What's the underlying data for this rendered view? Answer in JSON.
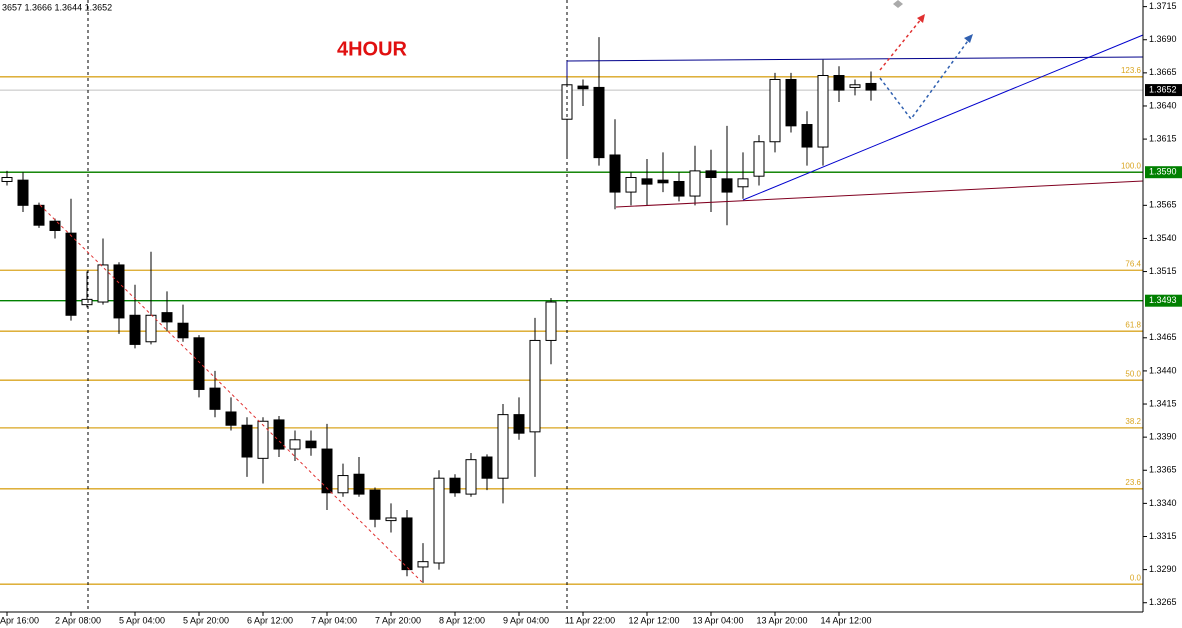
{
  "chart_data": {
    "type": "candlestick",
    "title": "4HOUR",
    "ohlc_header": "3657 1.3666 1.3644 1.3652",
    "categories": [
      "Apr 16:00",
      null,
      null,
      null,
      "2 Apr 08:00",
      null,
      null,
      null,
      "5 Apr 04:00",
      null,
      null,
      null,
      "5 Apr 20:00",
      null,
      null,
      null,
      "6 Apr 12:00",
      null,
      null,
      null,
      "7 Apr 04:00",
      null,
      null,
      null,
      "7 Apr 20:00",
      null,
      null,
      null,
      "8 Apr 12:00",
      null,
      null,
      null,
      "9 Apr 04:00",
      null,
      null,
      null,
      "11 Apr 22:00",
      null,
      null,
      null,
      "12 Apr 12:00",
      null,
      null,
      null,
      "13 Apr 04:00",
      null,
      null,
      null,
      "13 Apr 20:00",
      null,
      null,
      null,
      "14 Apr 12:00",
      null,
      null
    ],
    "candles": [
      {
        "open": 1.3583,
        "high": 1.3591,
        "low": 1.358,
        "close": 1.3586
      },
      {
        "open": 1.3584,
        "high": 1.359,
        "low": 1.356,
        "close": 1.3565
      },
      {
        "open": 1.3565,
        "high": 1.3567,
        "low": 1.3548,
        "close": 1.355
      },
      {
        "open": 1.3553,
        "high": 1.3555,
        "low": 1.354,
        "close": 1.3546
      },
      {
        "open": 1.3544,
        "high": 1.357,
        "low": 1.3478,
        "close": 1.3482
      },
      {
        "open": 1.349,
        "high": 1.3515,
        "low": 1.3488,
        "close": 1.3494
      },
      {
        "open": 1.3492,
        "high": 1.354,
        "low": 1.349,
        "close": 1.352
      },
      {
        "open": 1.352,
        "high": 1.3522,
        "low": 1.3468,
        "close": 1.348
      },
      {
        "open": 1.3482,
        "high": 1.3505,
        "low": 1.3457,
        "close": 1.346
      },
      {
        "open": 1.3462,
        "high": 1.353,
        "low": 1.346,
        "close": 1.3482
      },
      {
        "open": 1.3484,
        "high": 1.35,
        "low": 1.347,
        "close": 1.3477
      },
      {
        "open": 1.3476,
        "high": 1.349,
        "low": 1.3462,
        "close": 1.3465
      },
      {
        "open": 1.3465,
        "high": 1.3467,
        "low": 1.342,
        "close": 1.3426
      },
      {
        "open": 1.3427,
        "high": 1.344,
        "low": 1.3405,
        "close": 1.3411
      },
      {
        "open": 1.3409,
        "high": 1.342,
        "low": 1.3395,
        "close": 1.3399
      },
      {
        "open": 1.3399,
        "high": 1.3405,
        "low": 1.336,
        "close": 1.3375
      },
      {
        "open": 1.3374,
        "high": 1.3405,
        "low": 1.3355,
        "close": 1.3402
      },
      {
        "open": 1.3403,
        "high": 1.3406,
        "low": 1.3375,
        "close": 1.3381
      },
      {
        "open": 1.3381,
        "high": 1.3395,
        "low": 1.3372,
        "close": 1.3388
      },
      {
        "open": 1.3387,
        "high": 1.3395,
        "low": 1.3376,
        "close": 1.3382
      },
      {
        "open": 1.3381,
        "high": 1.34,
        "low": 1.3335,
        "close": 1.3348
      },
      {
        "open": 1.3348,
        "high": 1.337,
        "low": 1.3345,
        "close": 1.3361
      },
      {
        "open": 1.3362,
        "high": 1.3375,
        "low": 1.3345,
        "close": 1.3347
      },
      {
        "open": 1.335,
        "high": 1.3352,
        "low": 1.3322,
        "close": 1.3328
      },
      {
        "open": 1.3327,
        "high": 1.334,
        "low": 1.3318,
        "close": 1.3329
      },
      {
        "open": 1.3329,
        "high": 1.3335,
        "low": 1.3285,
        "close": 1.329
      },
      {
        "open": 1.3292,
        "high": 1.331,
        "low": 1.328,
        "close": 1.3296
      },
      {
        "open": 1.3295,
        "high": 1.3365,
        "low": 1.329,
        "close": 1.3359
      },
      {
        "open": 1.3359,
        "high": 1.3362,
        "low": 1.3345,
        "close": 1.3348
      },
      {
        "open": 1.3347,
        "high": 1.3378,
        "low": 1.3345,
        "close": 1.3373
      },
      {
        "open": 1.3375,
        "high": 1.3377,
        "low": 1.335,
        "close": 1.3359
      },
      {
        "open": 1.3359,
        "high": 1.3415,
        "low": 1.334,
        "close": 1.3407
      },
      {
        "open": 1.3407,
        "high": 1.342,
        "low": 1.3388,
        "close": 1.3393
      },
      {
        "open": 1.3394,
        "high": 1.348,
        "low": 1.336,
        "close": 1.3463
      },
      {
        "open": 1.3463,
        "high": 1.3495,
        "low": 1.3445,
        "close": 1.3492
      },
      {
        "open": 1.363,
        "high": 1.3662,
        "low": 1.36,
        "close": 1.3656
      },
      {
        "open": 1.3655,
        "high": 1.366,
        "low": 1.364,
        "close": 1.3653
      },
      {
        "open": 1.3654,
        "high": 1.3692,
        "low": 1.3595,
        "close": 1.3601
      },
      {
        "open": 1.3603,
        "high": 1.363,
        "low": 1.3562,
        "close": 1.3575
      },
      {
        "open": 1.3575,
        "high": 1.359,
        "low": 1.3565,
        "close": 1.3586
      },
      {
        "open": 1.3585,
        "high": 1.36,
        "low": 1.3565,
        "close": 1.3581
      },
      {
        "open": 1.3584,
        "high": 1.3605,
        "low": 1.3575,
        "close": 1.3582
      },
      {
        "open": 1.3583,
        "high": 1.359,
        "low": 1.3568,
        "close": 1.3572
      },
      {
        "open": 1.3572,
        "high": 1.361,
        "low": 1.3565,
        "close": 1.3591
      },
      {
        "open": 1.3591,
        "high": 1.3607,
        "low": 1.356,
        "close": 1.3586
      },
      {
        "open": 1.3585,
        "high": 1.3625,
        "low": 1.355,
        "close": 1.3575
      },
      {
        "open": 1.3579,
        "high": 1.3605,
        "low": 1.357,
        "close": 1.3585
      },
      {
        "open": 1.3587,
        "high": 1.3618,
        "low": 1.358,
        "close": 1.3613
      },
      {
        "open": 1.3613,
        "high": 1.3665,
        "low": 1.3605,
        "close": 1.366
      },
      {
        "open": 1.366,
        "high": 1.3665,
        "low": 1.362,
        "close": 1.3625
      },
      {
        "open": 1.3626,
        "high": 1.3636,
        "low": 1.3595,
        "close": 1.3609
      },
      {
        "open": 1.3609,
        "high": 1.3675,
        "low": 1.3595,
        "close": 1.3663
      },
      {
        "open": 1.3663,
        "high": 1.367,
        "low": 1.3643,
        "close": 1.3652
      },
      {
        "open": 1.3654,
        "high": 1.366,
        "low": 1.3648,
        "close": 1.3656
      },
      {
        "open": 1.3657,
        "high": 1.3666,
        "low": 1.3644,
        "close": 1.3652
      }
    ],
    "ylim": [
      1.3258,
      1.372
    ],
    "yticks": [
      {
        "value": 1.3715,
        "label": "1.3715"
      },
      {
        "value": 1.369,
        "label": "1.3690"
      },
      {
        "value": 1.3665,
        "label": "1.3665"
      },
      {
        "value": 1.364,
        "label": "1.3640"
      },
      {
        "value": 1.3615,
        "label": "1.3615"
      },
      {
        "value": 1.3565,
        "label": "1.3565"
      },
      {
        "value": 1.354,
        "label": "1.3540"
      },
      {
        "value": 1.3515,
        "label": "1.3515"
      },
      {
        "value": 1.3465,
        "label": "1.3465"
      },
      {
        "value": 1.344,
        "label": "1.3440"
      },
      {
        "value": 1.3415,
        "label": "1.3415"
      },
      {
        "value": 1.339,
        "label": "1.3390"
      },
      {
        "value": 1.3365,
        "label": "1.3365"
      },
      {
        "value": 1.334,
        "label": "1.3340"
      },
      {
        "value": 1.3315,
        "label": "1.3315"
      },
      {
        "value": 1.329,
        "label": "1.3290"
      },
      {
        "value": 1.3265,
        "label": "1.3265"
      }
    ],
    "fib_levels": [
      {
        "label": "123.6",
        "price": 1.3662
      },
      {
        "label": "100.0",
        "price": 1.359
      },
      {
        "label": "76.4",
        "price": 1.3516
      },
      {
        "label": "61.8",
        "price": 1.347
      },
      {
        "label": "50.0",
        "price": 1.3433
      },
      {
        "label": "38.2",
        "price": 1.3397
      },
      {
        "label": "23.6",
        "price": 1.3351
      },
      {
        "label": "0.0",
        "price": 1.3279
      }
    ],
    "fib_color": "#daa520",
    "price_lines": [
      {
        "price": 1.359,
        "label": "1.3590",
        "color": "#008000"
      },
      {
        "price": 1.3493,
        "label": "1.3493",
        "color": "#008000"
      }
    ],
    "current_price": {
      "price": 1.3652,
      "label": "1.3652"
    }
  }
}
